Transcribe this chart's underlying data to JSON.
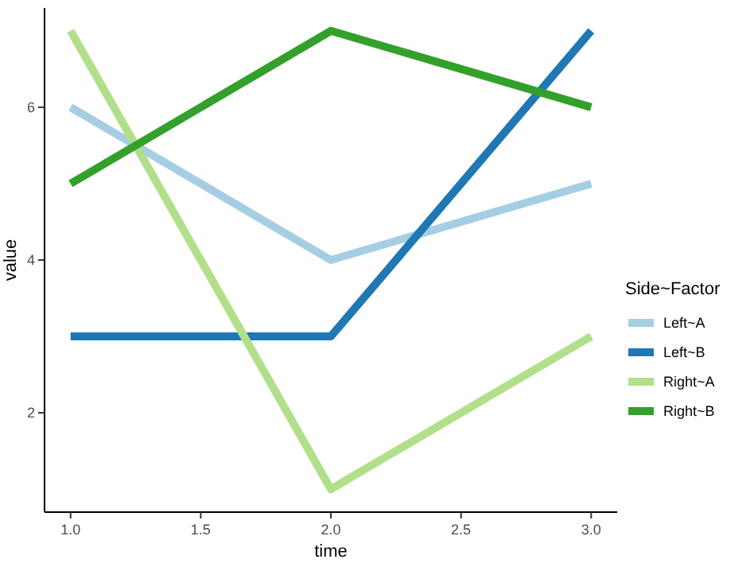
{
  "chart_data": {
    "type": "line",
    "xlabel": "time",
    "ylabel": "value",
    "legend_title": "Side~Factor",
    "legend": "right",
    "grid": false,
    "line_style": "solid",
    "x": [
      1,
      2,
      3
    ],
    "xlim": [
      0.9,
      3.1
    ],
    "xticks": [
      {
        "value": 1,
        "label": "1.0"
      },
      {
        "value": 1.5,
        "label": "1.5"
      },
      {
        "value": 2,
        "label": "2.0"
      },
      {
        "value": 2.5,
        "label": "2.5"
      },
      {
        "value": 3,
        "label": "3.0"
      }
    ],
    "ylim": [
      0.7,
      7.3
    ],
    "yticks": [
      2,
      4,
      6
    ],
    "series": [
      {
        "name": "Left~A",
        "color": "#a6cee3",
        "values": [
          6,
          4,
          5
        ]
      },
      {
        "name": "Left~B",
        "color": "#1f78b4",
        "values": [
          3,
          3,
          7
        ]
      },
      {
        "name": "Right~A",
        "color": "#b2df8a",
        "values": [
          7,
          1,
          3
        ]
      },
      {
        "name": "Right~B",
        "color": "#33a02c",
        "values": [
          5,
          7,
          6
        ]
      }
    ]
  }
}
